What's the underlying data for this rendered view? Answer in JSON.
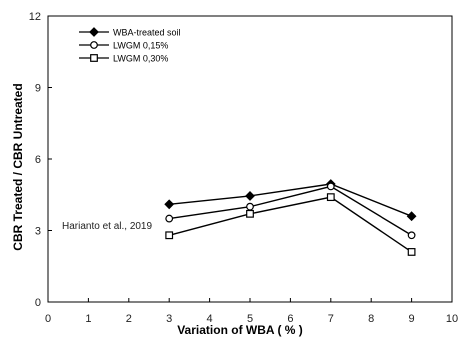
{
  "chart_data": {
    "type": "line",
    "xlabel": "Variation of WBA ( % )",
    "ylabel": "CBR Treated  /  CBR Untreated",
    "xlim": [
      0,
      10
    ],
    "ylim": [
      0,
      12
    ],
    "xticks": [
      "0",
      "1",
      "2",
      "3",
      "4",
      "5",
      "6",
      "7",
      "8",
      "9",
      "10"
    ],
    "yticks": [
      "0",
      "3",
      "6",
      "9",
      "12"
    ],
    "grid": false,
    "legend_position": "top-left",
    "annotation": "Harianto et al., 2019",
    "series": [
      {
        "name": "WBA-treated soil",
        "marker": "filled-diamond",
        "x": [
          3,
          5,
          7,
          9
        ],
        "y": [
          4.1,
          4.45,
          4.95,
          3.6
        ]
      },
      {
        "name": "LWGM 0,15%",
        "marker": "open-circle",
        "x": [
          3,
          5,
          7,
          9
        ],
        "y": [
          3.5,
          4.0,
          4.85,
          2.8
        ]
      },
      {
        "name": "LWGM 0,30%",
        "marker": "open-square",
        "x": [
          3,
          5,
          7,
          9
        ],
        "y": [
          2.8,
          3.7,
          4.4,
          2.1
        ]
      }
    ]
  }
}
